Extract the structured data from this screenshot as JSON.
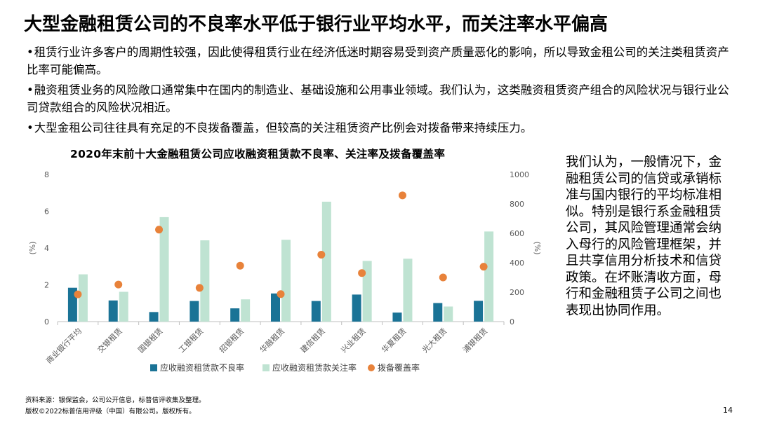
{
  "title": "大型金融租赁公司的不良率水平低于银行业平均水平，而关注率水平偏高",
  "bullets": [
    "租赁行业许多客户的周期性较强，因此使得租赁行业在经济低迷时期容易受到资产质量恶化的影响，所以导致金租公司的关注类租赁资产比率可能偏高。",
    "融资租赁业务的风险敞口通常集中在国内的制造业、基础设施和公用事业领域。我们认为，这类融资租赁资产组合的风险状况与银行业公司贷款组合的风险状况相近。",
    "大型金租公司往往具有充足的不良拨备覆盖，但较高的关注租赁资产比例会对拨备带来持续压力。"
  ],
  "side_text": "我们认为，一般情况下，金融租赁公司的信贷或承销标准与国内银行的平均标准相似。特别是银行系金融租赁公司，其风险管理通常会纳入母行的风险管理框架，并且共享信用分析技术和信贷政策。在坏账清收方面，母行和金融租赁子公司之间也表现出协同作用。",
  "footer": {
    "source": "资料来源：银保监会，公司公开信息，标普信评收集及整理。",
    "copyright": "版权©2022标普信用评级（中国）有限公司。版权所有。",
    "page": "14"
  },
  "chart_data": {
    "type": "bar",
    "title": "2020年末前十大金融租赁公司应收融资租赁款不良率、关注率及拨备覆盖率",
    "categories": [
      "商业银行平均",
      "交银租赁",
      "国银租赁",
      "工银租赁",
      "招银租赁",
      "华融租赁",
      "建信租赁",
      "兴业租赁",
      "华夏租赁",
      "光大租赁",
      "浦银租赁"
    ],
    "series": [
      {
        "name": "应收融资租赁款不良率",
        "axis": "left",
        "kind": "bar",
        "color": "#1a7396",
        "values": [
          1.84,
          1.15,
          0.52,
          1.12,
          0.72,
          1.53,
          1.12,
          1.47,
          0.49,
          1.01,
          1.13
        ]
      },
      {
        "name": "应收融资租赁款关注率",
        "axis": "left",
        "kind": "bar",
        "color": "#bfe3d2",
        "values": [
          2.57,
          1.62,
          5.68,
          4.42,
          1.21,
          4.45,
          6.52,
          3.3,
          3.42,
          0.82,
          4.9
        ]
      },
      {
        "name": "拨备覆盖率",
        "axis": "right",
        "kind": "scatter",
        "color": "#e8823a",
        "values": [
          185,
          252,
          625,
          229,
          380,
          187,
          455,
          330,
          858,
          300,
          373
        ]
      }
    ],
    "ylabel_left": "(%)",
    "ylabel_right": "(%)",
    "ylim_left": [
      0,
      8
    ],
    "yticks_left": [
      0,
      2,
      4,
      6,
      8
    ],
    "ylim_right": [
      0,
      1000
    ],
    "yticks_right": [
      0,
      200,
      400,
      600,
      800,
      1000
    ],
    "grid": false,
    "legend_position": "bottom"
  }
}
